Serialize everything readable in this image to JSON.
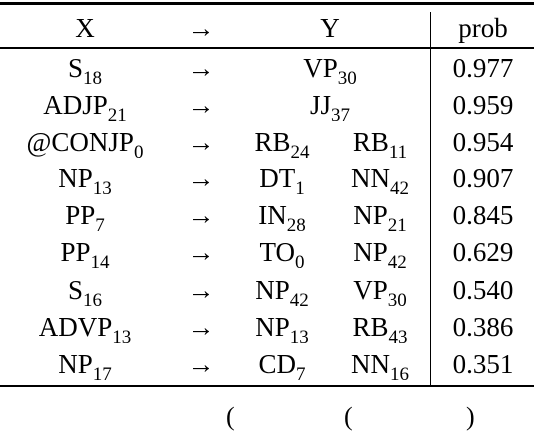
{
  "header": {
    "x": "X",
    "arrow": "→",
    "y": "Y",
    "prob": "prob"
  },
  "rows": [
    {
      "x": "S",
      "xs": "18",
      "y1": "VP",
      "y1s": "30",
      "y2": "",
      "y2s": "",
      "prob": "0.977"
    },
    {
      "x": "ADJP",
      "xs": "21",
      "y1": "JJ",
      "y1s": "37",
      "y2": "",
      "y2s": "",
      "prob": "0.959"
    },
    {
      "x": "@CONJP",
      "xs": "0",
      "y1": "RB",
      "y1s": "24",
      "y2": "RB",
      "y2s": "11",
      "prob": "0.954"
    },
    {
      "x": "NP",
      "xs": "13",
      "y1": "DT",
      "y1s": "1",
      "y2": "NN",
      "y2s": "42",
      "prob": "0.907"
    },
    {
      "x": "PP",
      "xs": "7",
      "y1": "IN",
      "y1s": "28",
      "y2": "NP",
      "y2s": "21",
      "prob": "0.845"
    },
    {
      "x": "PP",
      "xs": "14",
      "y1": "TO",
      "y1s": "0",
      "y2": "NP",
      "y2s": "42",
      "prob": "0.629"
    },
    {
      "x": "S",
      "xs": "16",
      "y1": "NP",
      "y1s": "42",
      "y2": "VP",
      "y2s": "30",
      "prob": "0.540"
    },
    {
      "x": "ADVP",
      "xs": "13",
      "y1": "NP",
      "y1s": "13",
      "y2": "RB",
      "y2s": "43",
      "prob": "0.386"
    },
    {
      "x": "NP",
      "xs": "17",
      "y1": "CD",
      "y1s": "7",
      "y2": "NN",
      "y2s": "16",
      "prob": "0.351"
    }
  ]
}
